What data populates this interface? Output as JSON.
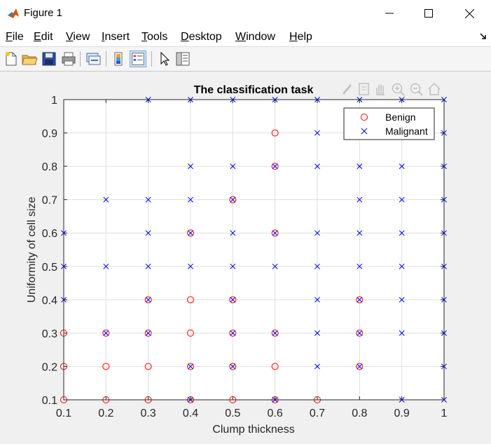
{
  "window": {
    "title": "Figure 1"
  },
  "menu": {
    "items": [
      {
        "first": "F",
        "rest": "ile"
      },
      {
        "first": "E",
        "rest": "dit"
      },
      {
        "first": "V",
        "rest": "iew"
      },
      {
        "first": "I",
        "rest": "nsert"
      },
      {
        "first": "T",
        "rest": "ools"
      },
      {
        "first": "D",
        "rest": "esktop"
      },
      {
        "first": "W",
        "rest": "indow"
      },
      {
        "first": "H",
        "rest": "elp"
      }
    ]
  },
  "toolbar": {
    "icons": [
      "new-figure-icon",
      "open-file-icon",
      "save-icon",
      "print-icon",
      "link-plot-icon",
      "colorbar-icon",
      "legend-icon",
      "pointer-icon",
      "property-inspector-icon"
    ]
  },
  "axes_toolbar": {
    "icons": [
      "brush-icon",
      "datatip-icon",
      "pan-icon",
      "zoom-in-icon",
      "zoom-out-icon",
      "home-icon"
    ]
  },
  "colors": {
    "benign": "#ff0000",
    "malignant": "#0000ff"
  },
  "chart_data": {
    "type": "scatter",
    "title": "The classification task",
    "xlabel": "Clump thickness",
    "ylabel": "Uniformity of cell size",
    "xlim": [
      0.1,
      1
    ],
    "ylim": [
      0.1,
      1
    ],
    "xticks": [
      "0.1",
      "0.2",
      "0.3",
      "0.4",
      "0.5",
      "0.6",
      "0.7",
      "0.8",
      "0.9",
      "1"
    ],
    "yticks": [
      "0.1",
      "0.2",
      "0.3",
      "0.4",
      "0.5",
      "0.6",
      "0.7",
      "0.8",
      "0.9",
      "1"
    ],
    "grid": true,
    "legend_position": "top-right",
    "series": [
      {
        "name": "Benign",
        "marker": "o",
        "color": "#ff0000",
        "points": [
          [
            0.1,
            0.1
          ],
          [
            0.2,
            0.1
          ],
          [
            0.3,
            0.1
          ],
          [
            0.4,
            0.1
          ],
          [
            0.5,
            0.1
          ],
          [
            0.6,
            0.1
          ],
          [
            0.7,
            0.1
          ],
          [
            0.1,
            0.2
          ],
          [
            0.2,
            0.2
          ],
          [
            0.3,
            0.2
          ],
          [
            0.4,
            0.2
          ],
          [
            0.5,
            0.2
          ],
          [
            0.6,
            0.2
          ],
          [
            0.8,
            0.2
          ],
          [
            0.1,
            0.3
          ],
          [
            0.2,
            0.3
          ],
          [
            0.3,
            0.3
          ],
          [
            0.4,
            0.3
          ],
          [
            0.5,
            0.3
          ],
          [
            0.6,
            0.3
          ],
          [
            0.8,
            0.3
          ],
          [
            0.3,
            0.4
          ],
          [
            0.4,
            0.4
          ],
          [
            0.5,
            0.4
          ],
          [
            0.8,
            0.4
          ],
          [
            0.4,
            0.6
          ],
          [
            0.6,
            0.6
          ],
          [
            0.5,
            0.7
          ],
          [
            0.6,
            0.8
          ],
          [
            0.6,
            0.9
          ]
        ]
      },
      {
        "name": "Malignant",
        "marker": "x",
        "color": "#0000ff",
        "points": [
          [
            0.4,
            0.1
          ],
          [
            0.6,
            0.1
          ],
          [
            0.9,
            0.1
          ],
          [
            1,
            0.1
          ],
          [
            0.4,
            0.2
          ],
          [
            0.5,
            0.2
          ],
          [
            0.7,
            0.2
          ],
          [
            0.8,
            0.2
          ],
          [
            1,
            0.2
          ],
          [
            0.2,
            0.3
          ],
          [
            0.3,
            0.3
          ],
          [
            0.5,
            0.3
          ],
          [
            0.6,
            0.3
          ],
          [
            0.7,
            0.3
          ],
          [
            0.8,
            0.3
          ],
          [
            0.9,
            0.3
          ],
          [
            1,
            0.3
          ],
          [
            0.1,
            0.4
          ],
          [
            0.3,
            0.4
          ],
          [
            0.5,
            0.4
          ],
          [
            0.7,
            0.4
          ],
          [
            0.8,
            0.4
          ],
          [
            0.9,
            0.4
          ],
          [
            1,
            0.4
          ],
          [
            0.1,
            0.5
          ],
          [
            0.2,
            0.5
          ],
          [
            0.3,
            0.5
          ],
          [
            0.4,
            0.5
          ],
          [
            0.5,
            0.5
          ],
          [
            0.6,
            0.5
          ],
          [
            0.7,
            0.5
          ],
          [
            0.8,
            0.5
          ],
          [
            0.9,
            0.5
          ],
          [
            1,
            0.5
          ],
          [
            0.1,
            0.6
          ],
          [
            0.3,
            0.6
          ],
          [
            0.4,
            0.6
          ],
          [
            0.5,
            0.6
          ],
          [
            0.6,
            0.6
          ],
          [
            0.7,
            0.6
          ],
          [
            0.8,
            0.6
          ],
          [
            0.9,
            0.6
          ],
          [
            1,
            0.6
          ],
          [
            0.2,
            0.7
          ],
          [
            0.3,
            0.7
          ],
          [
            0.4,
            0.7
          ],
          [
            0.5,
            0.7
          ],
          [
            0.8,
            0.7
          ],
          [
            0.9,
            0.7
          ],
          [
            1,
            0.7
          ],
          [
            0.4,
            0.8
          ],
          [
            0.5,
            0.8
          ],
          [
            0.6,
            0.8
          ],
          [
            0.7,
            0.8
          ],
          [
            0.8,
            0.8
          ],
          [
            0.9,
            0.8
          ],
          [
            1,
            0.8
          ],
          [
            0.7,
            0.9
          ],
          [
            0.8,
            0.9
          ],
          [
            1,
            0.9
          ],
          [
            0.3,
            1
          ],
          [
            0.4,
            1
          ],
          [
            0.5,
            1
          ],
          [
            0.6,
            1
          ],
          [
            0.7,
            1
          ],
          [
            0.8,
            1
          ],
          [
            0.9,
            1
          ],
          [
            1,
            1
          ]
        ]
      }
    ]
  }
}
